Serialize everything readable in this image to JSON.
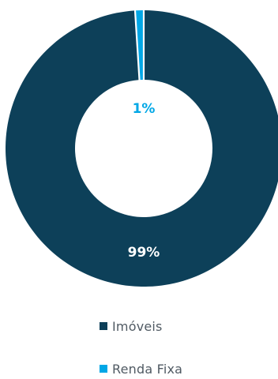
{
  "chart_data": {
    "type": "pie",
    "donut": true,
    "title": "",
    "slices": [
      {
        "label": "Imóveis",
        "value": 99,
        "value_label": "99%",
        "color": "#0d4059"
      },
      {
        "label": "Renda Fixa",
        "value": 1,
        "value_label": "1%",
        "color": "#00a7e6"
      }
    ],
    "legend_position": "bottom",
    "label_colors": [
      "#ffffff",
      "#00a7e6"
    ]
  }
}
